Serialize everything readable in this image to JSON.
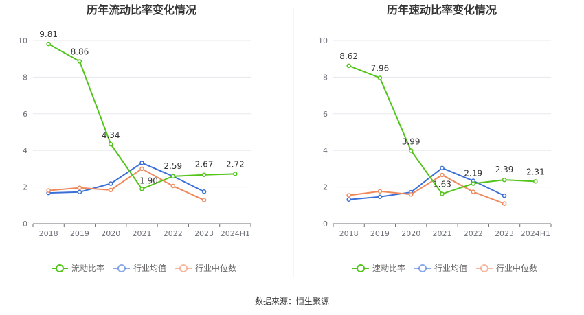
{
  "source": "数据来源：恒生聚源",
  "colors": {
    "main": "#52c41a",
    "avg": "#3b6fd8",
    "median": "#f08a5d",
    "grid": "#e6e8ee",
    "axis": "#6e7079"
  },
  "chart_data": [
    {
      "type": "line",
      "title": "历年流动比率变化情况",
      "x": [
        "2018",
        "2019",
        "2020",
        "2021",
        "2022",
        "2023",
        "2024H1"
      ],
      "ylim": [
        0,
        10
      ],
      "yticks": [
        0,
        2,
        4,
        6,
        8,
        10
      ],
      "grid": true,
      "legend": "bottom",
      "series": [
        {
          "name": "流动比率",
          "role": "main",
          "values": [
            9.81,
            8.86,
            4.34,
            1.9,
            2.59,
            2.67,
            2.72
          ],
          "labels": [
            "9.81",
            "8.86",
            "4.34",
            "1.90",
            "2.59",
            "2.67",
            "2.72"
          ]
        },
        {
          "name": "行业均值",
          "role": "avg",
          "values": [
            1.68,
            1.73,
            2.19,
            3.32,
            2.59,
            1.75,
            null
          ]
        },
        {
          "name": "行业中位数",
          "role": "median",
          "values": [
            1.81,
            1.96,
            1.84,
            3.0,
            2.06,
            1.29,
            null
          ]
        }
      ]
    },
    {
      "type": "line",
      "title": "历年速动比率变化情况",
      "x": [
        "2018",
        "2019",
        "2020",
        "2021",
        "2022",
        "2023",
        "2024H1"
      ],
      "ylim": [
        0,
        10
      ],
      "yticks": [
        0,
        2,
        4,
        6,
        8,
        10
      ],
      "grid": true,
      "legend": "bottom",
      "series": [
        {
          "name": "速动比率",
          "role": "main",
          "values": [
            8.62,
            7.96,
            3.99,
            1.63,
            2.19,
            2.39,
            2.31
          ],
          "labels": [
            "8.62",
            "7.96",
            "3.99",
            "1.63",
            "2.19",
            "2.39",
            "2.31"
          ]
        },
        {
          "name": "行业均值",
          "role": "avg",
          "values": [
            1.32,
            1.47,
            1.72,
            3.04,
            2.34,
            1.53,
            null
          ]
        },
        {
          "name": "行业中位数",
          "role": "median",
          "values": [
            1.55,
            1.77,
            1.6,
            2.66,
            1.74,
            1.1,
            null
          ]
        }
      ]
    }
  ]
}
